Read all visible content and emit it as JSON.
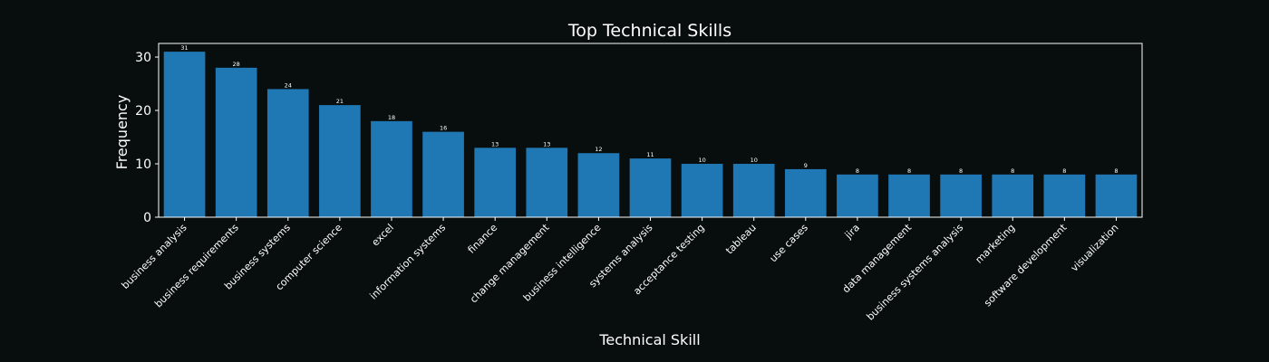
{
  "chart_data": {
    "type": "bar",
    "title": "Top Technical Skills",
    "xlabel": "Technical Skill",
    "ylabel": "Frequency",
    "categories": [
      "business analysis",
      "business requirements",
      "business systems",
      "computer science",
      "excel",
      "information systems",
      "finance",
      "change management",
      "business intelligence",
      "systems analysis",
      "acceptance testing",
      "tableau",
      "use cases",
      "jira",
      "data management",
      "business systems analysis",
      "marketing",
      "software development",
      "visualization"
    ],
    "values": [
      31,
      28,
      24,
      21,
      18,
      16,
      13,
      13,
      12,
      11,
      10,
      10,
      9,
      8,
      8,
      8,
      8,
      8,
      8
    ],
    "ylim": [
      0,
      32.55
    ],
    "yticks": [
      0,
      10,
      20,
      30
    ],
    "grid": false,
    "bar_color": "#1f77b4",
    "background_color": "#080d0e",
    "text_color": "#ffffff"
  }
}
